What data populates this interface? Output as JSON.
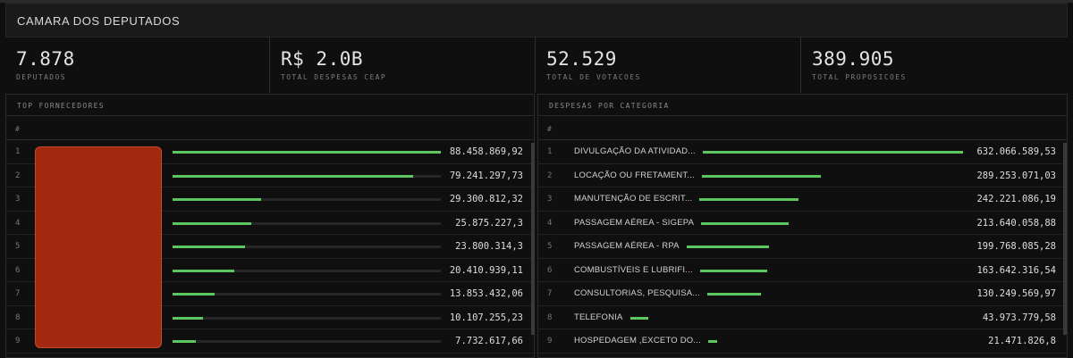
{
  "header": {
    "title": "CAMARA DOS DEPUTADOS"
  },
  "stats": [
    {
      "value": "7.878",
      "label": "DEPUTADOS"
    },
    {
      "value": "R$ 2.0B",
      "label": "TOTAL DESPESAS CEAP"
    },
    {
      "value": "52.529",
      "label": "TOTAL DE VOTACOES"
    },
    {
      "value": "389.905",
      "label": "TOTAL PROPOSICOES"
    }
  ],
  "left_panel": {
    "title": "TOP FORNECEDORES",
    "column_header": "#",
    "rows": [
      {
        "rank": "1",
        "value": "88.458.869,92",
        "fraction": 1.0
      },
      {
        "rank": "2",
        "value": "79.241.297,73",
        "fraction": 0.895
      },
      {
        "rank": "3",
        "value": "29.300.812,32",
        "fraction": 0.331
      },
      {
        "rank": "4",
        "value": "25.875.227,3",
        "fraction": 0.292
      },
      {
        "rank": "5",
        "value": "23.800.314,3",
        "fraction": 0.269
      },
      {
        "rank": "6",
        "value": "20.410.939,11",
        "fraction": 0.23
      },
      {
        "rank": "7",
        "value": "13.853.432,06",
        "fraction": 0.156
      },
      {
        "rank": "8",
        "value": "10.107.255,23",
        "fraction": 0.114
      },
      {
        "rank": "9",
        "value": "7.732.617,66",
        "fraction": 0.087
      }
    ]
  },
  "right_panel": {
    "title": "DESPESAS POR CATEGORIA",
    "column_header": "#",
    "rows": [
      {
        "rank": "1",
        "name": "DIVULGAÇÃO DA ATIVIDAD...",
        "value": "632.066.589,53",
        "fraction": 1.0
      },
      {
        "rank": "2",
        "name": "LOCAÇÃO OU FRETAMENT...",
        "value": "289.253.071,03",
        "fraction": 0.458
      },
      {
        "rank": "3",
        "name": "MANUTENÇÃO DE ESCRIT...",
        "value": "242.221.086,19",
        "fraction": 0.383
      },
      {
        "rank": "4",
        "name": "PASSAGEM AÉREA - SIGEPA",
        "value": "213.640.058,88",
        "fraction": 0.338
      },
      {
        "rank": "5",
        "name": "PASSAGEM AÉREA - RPA",
        "value": "199.768.085,28",
        "fraction": 0.316
      },
      {
        "rank": "6",
        "name": "COMBUSTÍVEIS E LUBRIFI...",
        "value": "163.642.316,54",
        "fraction": 0.259
      },
      {
        "rank": "7",
        "name": "CONSULTORIAS, PESQUISA...",
        "value": "130.249.569,97",
        "fraction": 0.206
      },
      {
        "rank": "8",
        "name": "TELEFONIA",
        "value": "43.973.779,58",
        "fraction": 0.07
      },
      {
        "rank": "9",
        "name": "HOSPEDAGEM ,EXCETO DO...",
        "value": "21.471.826,8",
        "fraction": 0.034
      }
    ]
  },
  "colors": {
    "bar": "#5cc75e",
    "track": "#262626",
    "redaction": "#a32810",
    "background": "#0f0f0f"
  }
}
